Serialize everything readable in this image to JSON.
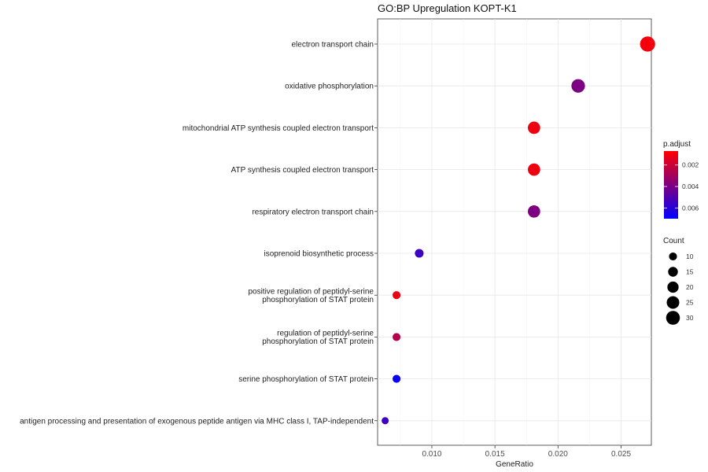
{
  "chart_data": {
    "type": "scatter",
    "title": "GO:BP Upregulation KOPT-K1",
    "xlabel": "GeneRatio",
    "ylabel": "",
    "xlim": [
      0.0057,
      0.0274
    ],
    "xticks": [
      0.01,
      0.015,
      0.02,
      0.025
    ],
    "xtick_labels": [
      "0.010",
      "0.015",
      "0.020",
      "0.025"
    ],
    "grid": true,
    "categories": [
      [
        "electron transport chain"
      ],
      [
        "oxidative phosphorylation"
      ],
      [
        "mitochondrial ATP synthesis coupled electron transport"
      ],
      [
        "ATP synthesis coupled electron transport"
      ],
      [
        "respiratory electron transport chain"
      ],
      [
        "isoprenoid biosynthetic process"
      ],
      [
        "positive regulation of peptidyl-serine",
        "phosphorylation of STAT protein"
      ],
      [
        "regulation of peptidyl-serine",
        "phosphorylation of STAT protein"
      ],
      [
        "serine phosphorylation of STAT protein"
      ],
      [
        "antigen processing and presentation of exogenous peptide antigen via MHC class I, TAP-independent"
      ]
    ],
    "points": [
      {
        "x": 0.0271,
        "count": 36,
        "p_adjust": 0.001
      },
      {
        "x": 0.0216,
        "count": 29,
        "p_adjust": 0.0039
      },
      {
        "x": 0.0181,
        "count": 24,
        "p_adjust": 0.0011
      },
      {
        "x": 0.0181,
        "count": 24,
        "p_adjust": 0.0011
      },
      {
        "x": 0.0181,
        "count": 24,
        "p_adjust": 0.0039
      },
      {
        "x": 0.009,
        "count": 12,
        "p_adjust": 0.0055
      },
      {
        "x": 0.0072,
        "count": 10,
        "p_adjust": 0.0012
      },
      {
        "x": 0.0072,
        "count": 10,
        "p_adjust": 0.0025
      },
      {
        "x": 0.0072,
        "count": 10,
        "p_adjust": 0.0068
      },
      {
        "x": 0.0063,
        "count": 8,
        "p_adjust": 0.0055
      }
    ],
    "color_legend": {
      "title": "p.adjust",
      "range": [
        0.0007,
        0.007
      ],
      "ticks": [
        0.002,
        0.004,
        0.006
      ],
      "tick_labels": [
        "0.002",
        "0.004",
        "0.006"
      ],
      "low_color": "#ff0000",
      "high_color": "#0000ff"
    },
    "size_legend": {
      "title": "Count",
      "values": [
        10,
        15,
        20,
        25,
        30
      ],
      "labels": [
        "10",
        "15",
        "20",
        "25",
        "30"
      ]
    },
    "legend_position": "right"
  }
}
